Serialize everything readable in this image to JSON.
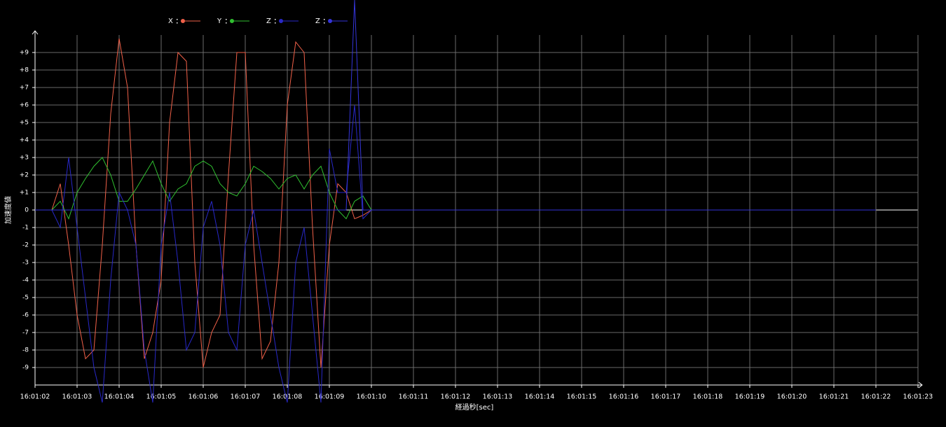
{
  "chart_data": {
    "type": "line",
    "x_label": "経過秒[sec]",
    "y_label": "加速度値",
    "x": [
      2.0,
      2.4,
      2.6,
      2.8,
      3.0,
      3.2,
      3.4,
      3.6,
      3.8,
      4.0,
      4.2,
      4.4,
      4.6,
      4.8,
      5.0,
      5.2,
      5.4,
      5.6,
      5.8,
      6.0,
      6.2,
      6.4,
      6.6,
      6.8,
      7.0,
      7.2,
      7.4,
      7.6,
      7.8,
      8.0,
      8.2,
      8.4,
      8.6,
      8.8,
      9.0,
      9.2,
      9.4,
      9.6,
      9.8,
      10,
      12,
      14,
      16,
      18,
      20,
      22
    ],
    "series": [
      {
        "name": "X",
        "color": "#f06048",
        "values": [
          0,
          0,
          1.5,
          -2,
          -6,
          -8.5,
          -8,
          -2,
          5.5,
          9.8,
          7,
          -2,
          -8.5,
          -7,
          -4,
          5,
          9,
          8.5,
          -3,
          -9,
          -7,
          -6,
          2,
          9,
          9,
          -2,
          -8.5,
          -7.5,
          -3,
          6,
          9.6,
          9,
          -1,
          -9,
          -2,
          1.5,
          1,
          -0.5,
          -0.3,
          0,
          0,
          0,
          0,
          0,
          0,
          0
        ]
      },
      {
        "name": "Y",
        "color": "#30c030",
        "values": [
          0,
          0,
          0.5,
          -0.5,
          1,
          1.8,
          2.5,
          3,
          2,
          0.5,
          0.5,
          1.2,
          2,
          2.8,
          1.5,
          0.5,
          1.2,
          1.5,
          2.5,
          2.8,
          2.5,
          1.5,
          1,
          0.8,
          1.5,
          2.5,
          2.2,
          1.8,
          1.2,
          1.8,
          2,
          1.2,
          2,
          2.5,
          1,
          0,
          -0.5,
          0.5,
          0.8,
          0,
          0,
          0,
          0,
          0,
          0,
          0
        ]
      },
      {
        "name": "Z",
        "color": "#2828c8",
        "values": [
          0,
          0,
          -1,
          3,
          -1,
          -5,
          -9,
          -11,
          -4,
          1,
          0,
          -2,
          -8,
          -11,
          -2,
          1,
          -3,
          -8,
          -7,
          -1,
          0.5,
          -2,
          -7,
          -8,
          -2,
          0,
          -3,
          -6,
          -9,
          -11,
          -3,
          -1,
          -6,
          -11,
          3.5,
          1,
          1,
          6,
          -0.5,
          0,
          0,
          0,
          0,
          0,
          0,
          0
        ]
      },
      {
        "name": "Z",
        "color": "#3434d8",
        "values": [
          0,
          0,
          0,
          0,
          0,
          0,
          0,
          0,
          0,
          0,
          0,
          0,
          0,
          0,
          0,
          0,
          0,
          0,
          0,
          0,
          0,
          0,
          0,
          0,
          0,
          0,
          0,
          0,
          0,
          0,
          0,
          0,
          0,
          0,
          0,
          0,
          0,
          12,
          0,
          0,
          0,
          0,
          0,
          0,
          0,
          0
        ]
      }
    ],
    "xlim": [
      2,
      23
    ],
    "ylim": [
      -10,
      10
    ],
    "xticks": [
      {
        "value": 2,
        "label": "16:01:02"
      },
      {
        "value": 3,
        "label": "16:01:03"
      },
      {
        "value": 4,
        "label": "16:01:04"
      },
      {
        "value": 5,
        "label": "16:01:05"
      },
      {
        "value": 6,
        "label": "16:01:06"
      },
      {
        "value": 7,
        "label": "16:01:07"
      },
      {
        "value": 8,
        "label": "16:01:08"
      },
      {
        "value": 9,
        "label": "16:01:09"
      },
      {
        "value": 10,
        "label": "16:01:10"
      },
      {
        "value": 11,
        "label": "16:01:11"
      },
      {
        "value": 12,
        "label": "16:01:12"
      },
      {
        "value": 13,
        "label": "16:01:13"
      },
      {
        "value": 14,
        "label": "16:01:14"
      },
      {
        "value": 15,
        "label": "16:01:15"
      },
      {
        "value": 16,
        "label": "16:01:16"
      },
      {
        "value": 17,
        "label": "16:01:17"
      },
      {
        "value": 18,
        "label": "16:01:18"
      },
      {
        "value": 19,
        "label": "16:01:19"
      },
      {
        "value": 20,
        "label": "16:01:20"
      },
      {
        "value": 21,
        "label": "16:01:21"
      },
      {
        "value": 22,
        "label": "16:01:22"
      },
      {
        "value": 23,
        "label": "16:01:23"
      }
    ],
    "yticks": [
      -9,
      -8,
      -7,
      -6,
      -5,
      -4,
      -3,
      -2,
      -1,
      0,
      {
        "value": 1,
        "label": "+1"
      },
      {
        "value": 2,
        "label": "+2"
      },
      {
        "value": 3,
        "label": "+3"
      },
      {
        "value": 4,
        "label": "+4"
      },
      {
        "value": 5,
        "label": "+5"
      },
      {
        "value": 6,
        "label": "+6"
      },
      {
        "value": 7,
        "label": "+7"
      },
      {
        "value": 8,
        "label": "+8"
      },
      {
        "value": 9,
        "label": "+9"
      }
    ],
    "grid": true
  }
}
